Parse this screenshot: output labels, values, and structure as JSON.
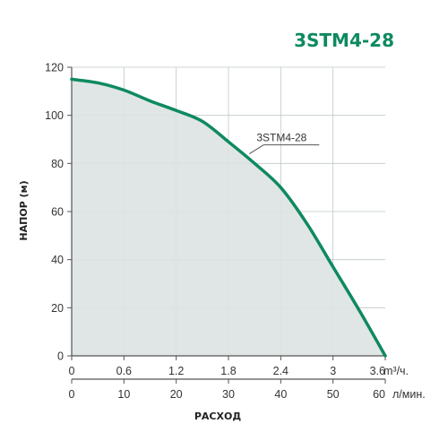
{
  "chart_data": {
    "type": "area",
    "title": "3STM4-28",
    "ylabel": "НАПОР (м)",
    "xlabel": "РАСХОД",
    "ylim": [
      0,
      120
    ],
    "y_ticks": [
      "0",
      "20",
      "40",
      "60",
      "80",
      "100",
      "120"
    ],
    "x_axis_primary": {
      "unit": "m³/ч.",
      "ticks": [
        "0",
        "0.6",
        "1.2",
        "1.8",
        "2.4",
        "3",
        "3.6"
      ]
    },
    "x_axis_secondary": {
      "unit": "л/мин.",
      "ticks": [
        "0",
        "10",
        "20",
        "30",
        "40",
        "50",
        "60"
      ]
    },
    "xlim": [
      0,
      60
    ],
    "series": [
      {
        "name": "3STM4-28",
        "x": [
          0,
          5,
          10,
          15,
          20,
          25,
          30,
          35,
          40,
          45,
          50,
          55,
          60
        ],
        "y": [
          115,
          113.5,
          110.5,
          106,
          102,
          97.5,
          89,
          80,
          70,
          55,
          37,
          19,
          0
        ]
      }
    ],
    "colors": {
      "line": "#0e8a5f",
      "fill": "#dde2e3",
      "grid": "#bfc6c8",
      "axis": "#555555"
    },
    "grid": true
  }
}
